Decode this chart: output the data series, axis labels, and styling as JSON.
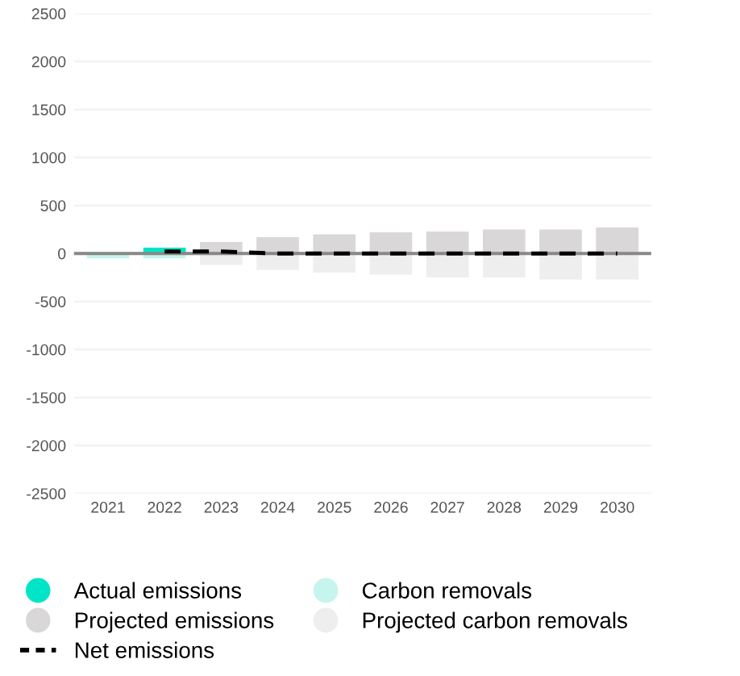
{
  "chart_data": {
    "type": "bar",
    "categories": [
      "2021",
      "2022",
      "2023",
      "2024",
      "2025",
      "2026",
      "2027",
      "2028",
      "2029",
      "2030"
    ],
    "series": [
      {
        "name": "Actual emissions",
        "color": "#00e5c8",
        "values": [
          null,
          60,
          null,
          null,
          null,
          null,
          null,
          null,
          null,
          null
        ]
      },
      {
        "name": "Carbon removals",
        "color": "#c5f5ec",
        "values": [
          -50,
          -50,
          null,
          null,
          null,
          null,
          null,
          null,
          null,
          null
        ]
      },
      {
        "name": "Projected emissions",
        "color": "#d9d7d8",
        "values": [
          null,
          null,
          120,
          170,
          200,
          220,
          230,
          250,
          250,
          270
        ]
      },
      {
        "name": "Projected carbon removals",
        "color": "#eeeeee",
        "values": [
          null,
          null,
          -120,
          -170,
          -200,
          -220,
          -250,
          -250,
          -270,
          -270
        ]
      },
      {
        "name": "Net emissions",
        "type": "line",
        "color": "#000000",
        "line_style": "dashed",
        "marker": "none",
        "values": [
          null,
          20,
          20,
          0,
          0,
          0,
          0,
          0,
          0,
          0
        ]
      }
    ],
    "ylim": [
      -2500,
      2500
    ],
    "yticks": [
      -2500,
      -2000,
      -1500,
      -1000,
      -500,
      0,
      500,
      1000,
      1500,
      2000,
      2500
    ],
    "ref_lines": [
      {
        "axis": "y",
        "value": 0,
        "color": "#888888"
      }
    ],
    "grid": "y",
    "legend": "bottom",
    "stacked": true
  }
}
